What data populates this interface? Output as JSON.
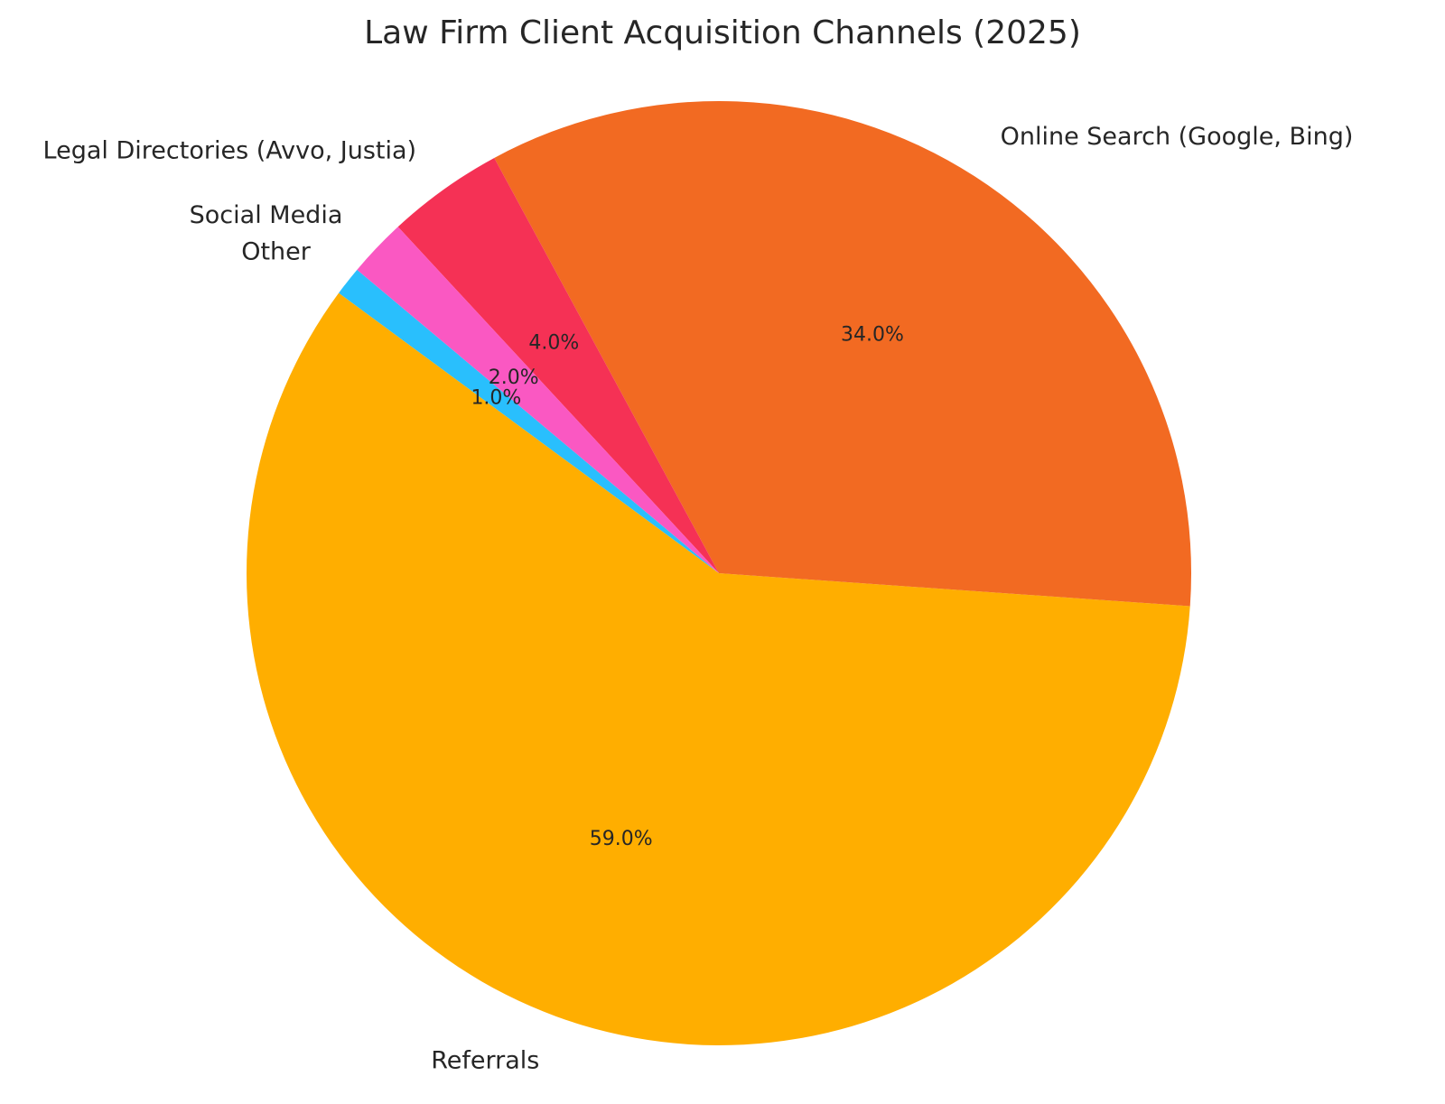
{
  "chart_data": {
    "type": "pie",
    "title": "Law Firm Client Acquisition Channels (2025)",
    "start_angle_deg": 140,
    "direction": "counterclockwise",
    "slices": [
      {
        "label": "Other",
        "value": 1.0,
        "pct_label": "1.0%",
        "color": "#29BFFD"
      },
      {
        "label": "Referrals",
        "value": 59.0,
        "pct_label": "59.0%",
        "color": "#FFAE00"
      },
      {
        "label": "Online Search (Google, Bing)",
        "value": 34.0,
        "pct_label": "34.0%",
        "color": "#F26A22"
      },
      {
        "label": "Legal Directories (Avvo, Justia)",
        "value": 4.0,
        "pct_label": "4.0%",
        "color": "#F53155"
      },
      {
        "label": "Social Media",
        "value": 2.0,
        "pct_label": "2.0%",
        "color": "#FA58C2"
      }
    ]
  }
}
